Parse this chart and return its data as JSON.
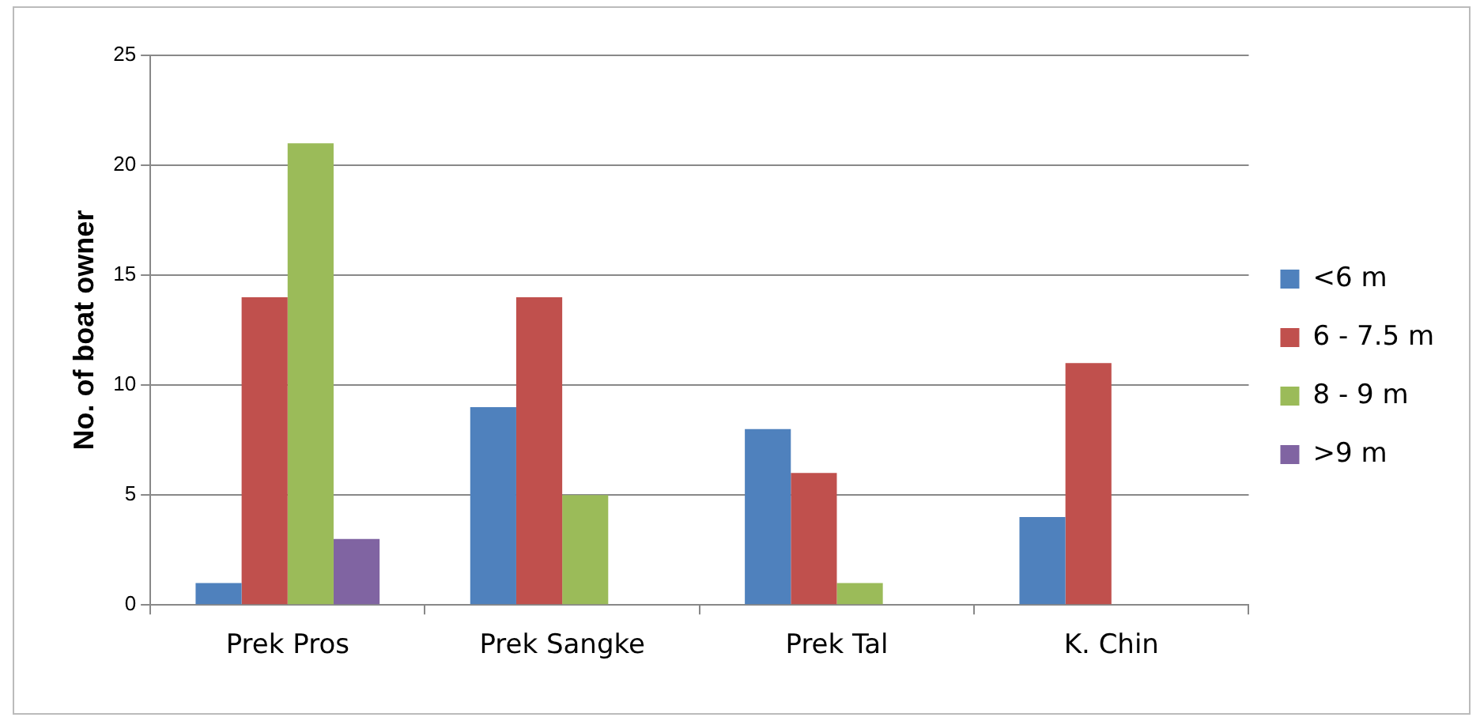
{
  "chart_data": {
    "type": "bar",
    "ylabel": "No. of boat owner",
    "categories": [
      "Prek Pros",
      "Prek Sangke",
      "Prek Tal",
      "K. Chin"
    ],
    "series": [
      {
        "name": "<6 m",
        "color": "#4f81bd",
        "values": [
          1,
          9,
          8,
          4
        ]
      },
      {
        "name": "6 - 7.5 m",
        "color": "#c0504d",
        "values": [
          14,
          14,
          6,
          11
        ]
      },
      {
        "name": "8 - 9 m",
        "color": "#9bbb59",
        "values": [
          21,
          5,
          1,
          0
        ]
      },
      {
        "name": ">9 m",
        "color": "#8064a2",
        "values": [
          3,
          0,
          0,
          0
        ]
      }
    ],
    "ylim": [
      0,
      25
    ],
    "yticks": [
      0,
      5,
      10,
      15,
      20,
      25
    ],
    "grid": "y",
    "legend": "right"
  }
}
